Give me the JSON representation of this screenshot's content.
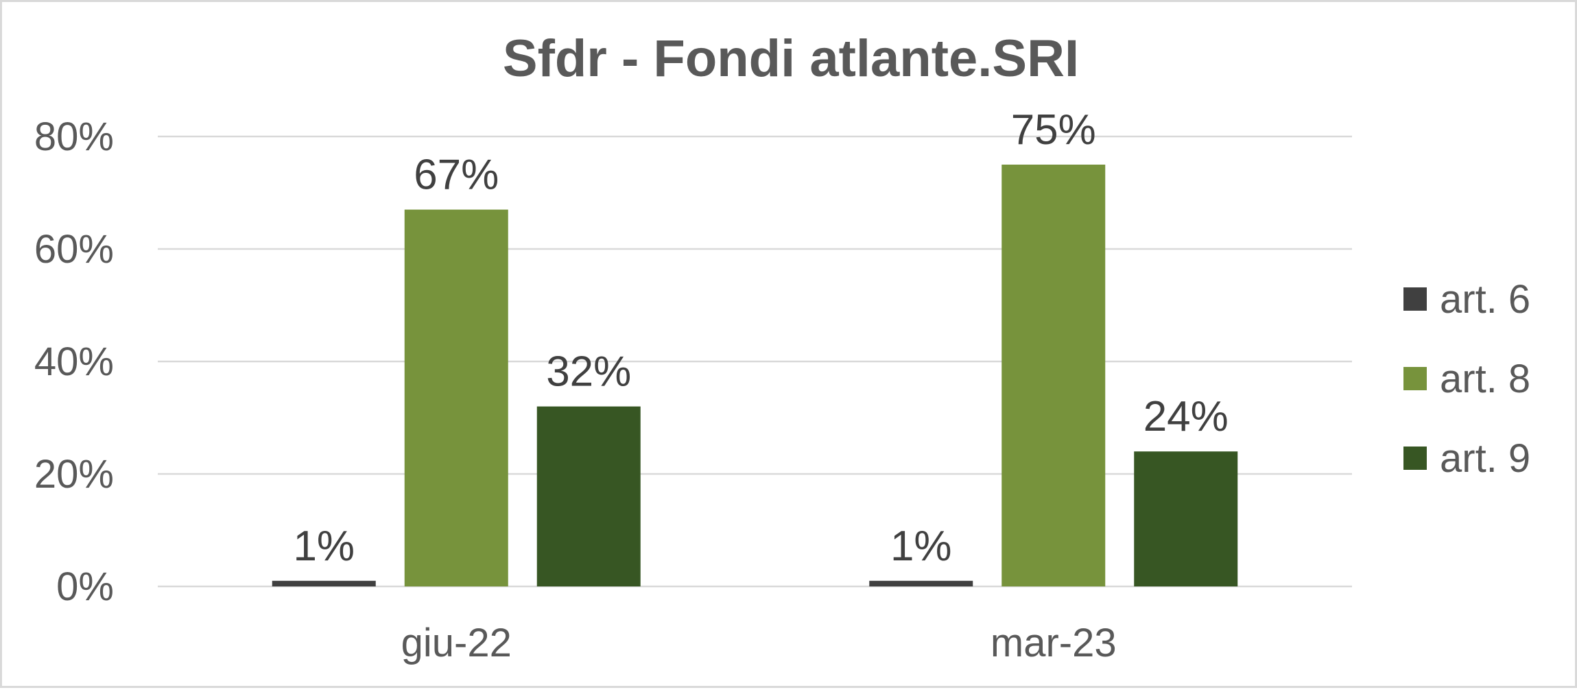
{
  "chart_data": {
    "type": "bar",
    "title": "Sfdr - Fondi atlante.SRI",
    "xlabel": "",
    "ylabel": "",
    "categories": [
      "giu-22",
      "mar-23"
    ],
    "series": [
      {
        "name": "art. 6",
        "values": [
          1,
          1
        ],
        "labels": [
          "1%",
          "1%"
        ],
        "color": "#404040"
      },
      {
        "name": "art. 8",
        "values": [
          67,
          75
        ],
        "labels": [
          "67%",
          "75%"
        ],
        "color": "#77933c"
      },
      {
        "name": "art. 9",
        "values": [
          32,
          24
        ],
        "labels": [
          "32%",
          "24%"
        ],
        "color": "#375623"
      }
    ],
    "ylim": [
      0,
      80
    ],
    "yticks": [
      0,
      20,
      40,
      60,
      80
    ],
    "ytick_labels": [
      "0%",
      "20%",
      "40%",
      "60%",
      "80%"
    ],
    "grid": true,
    "legend_position": "right"
  }
}
